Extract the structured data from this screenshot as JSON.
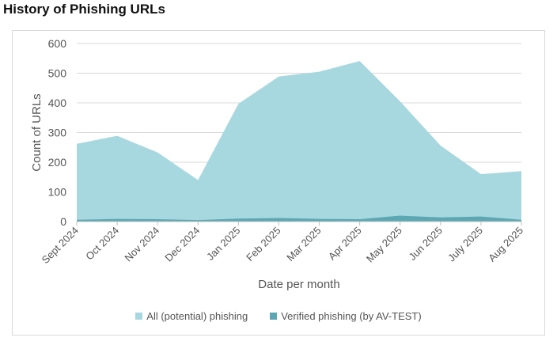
{
  "title": "History of Phishing URLs",
  "chart_data": {
    "type": "area",
    "categories": [
      "Sept 2024",
      "Oct 2024",
      "Nov 2024",
      "Dec 2024",
      "Jan 2025",
      "Feb 2025",
      "Mar 2025",
      "Apr 2025",
      "May 2025",
      "Jun 2025",
      "July 2025",
      "Aug 2025"
    ],
    "series": [
      {
        "name": "All (potential) phishing",
        "color": "#a8d8df",
        "values": [
          262,
          289,
          233,
          140,
          397,
          489,
          505,
          541,
          405,
          256,
          160,
          170
        ]
      },
      {
        "name": "Verified phishing (by AV-TEST)",
        "color": "#5ba8b4",
        "values": [
          6,
          9,
          8,
          5,
          10,
          12,
          9,
          8,
          20,
          14,
          17,
          6
        ]
      }
    ],
    "xlabel": "Date per month",
    "ylabel": "Count of URLs",
    "ylim": [
      0,
      600
    ],
    "yticks": [
      0,
      100,
      200,
      300,
      400,
      500,
      600
    ],
    "grid": true,
    "legend_position": "bottom"
  }
}
